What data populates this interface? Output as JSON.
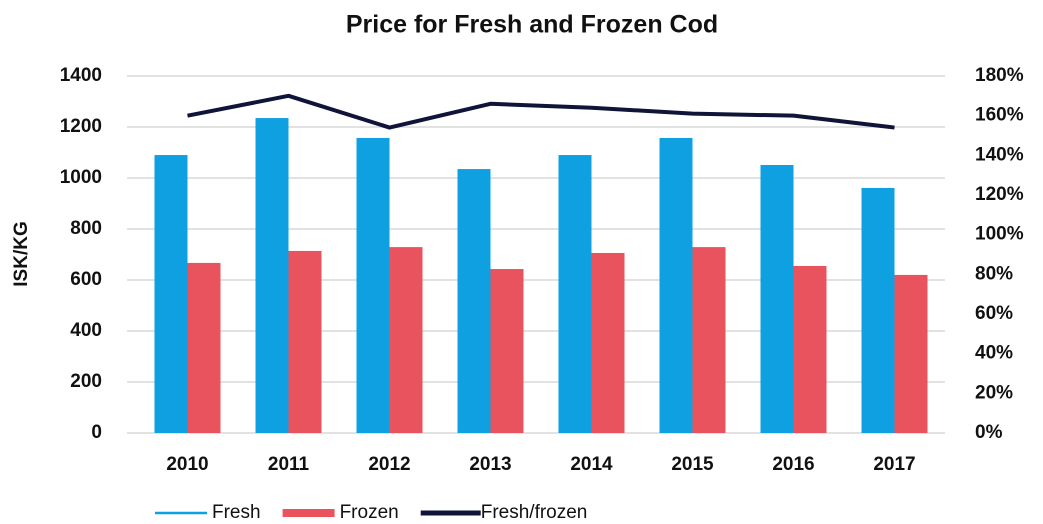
{
  "chart_data": {
    "type": "bar",
    "title": "Price for Fresh and Frozen Cod",
    "y_label": "ISK/KG",
    "categories": [
      "2010",
      "2011",
      "2012",
      "2013",
      "2014",
      "2015",
      "2016",
      "2017"
    ],
    "series": [
      {
        "name": "Fresh",
        "color": "#0ea0e0",
        "values": [
          1090,
          1235,
          1157,
          1035,
          1090,
          1157,
          1051,
          961
        ]
      },
      {
        "name": "Frozen",
        "color": "#e9535e",
        "values": [
          667,
          714,
          729,
          643,
          706,
          729,
          655,
          620
        ]
      },
      {
        "name": "Fresh/frozen",
        "color": "#0f1438",
        "type": "line",
        "axis": "y2",
        "values": [
          160,
          170,
          154,
          166,
          164,
          161,
          160,
          154
        ]
      }
    ],
    "ylim": [
      0,
      1400
    ],
    "yticks": [
      0,
      200,
      400,
      600,
      800,
      1000,
      1200,
      1400
    ],
    "y2lim": [
      0,
      180
    ],
    "y2ticks": [
      {
        "value": 0,
        "label": "0%"
      },
      {
        "value": 20,
        "label": "20%"
      },
      {
        "value": 40,
        "label": "40%"
      },
      {
        "value": 60,
        "label": "60%"
      },
      {
        "value": 80,
        "label": "80%"
      },
      {
        "value": 100,
        "label": "100%"
      },
      {
        "value": 120,
        "label": "120%"
      },
      {
        "value": 140,
        "label": "140%"
      },
      {
        "value": 160,
        "label": "160%"
      },
      {
        "value": 180,
        "label": "180%"
      }
    ],
    "grid": true,
    "legend": "bottom"
  }
}
